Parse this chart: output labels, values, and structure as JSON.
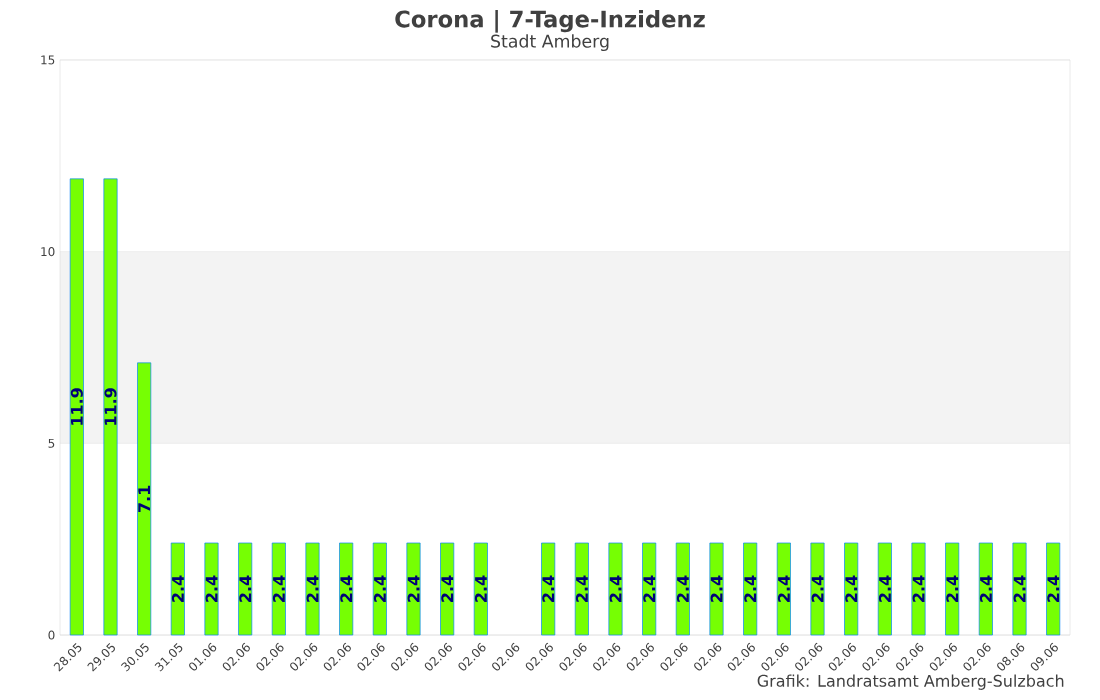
{
  "chart_data": {
    "type": "bar",
    "title": "Corona | 7-Tage-Inzidenz",
    "subtitle": "Stadt Amberg",
    "categories": [
      "28.05",
      "29.05",
      "30.05",
      "31.05",
      "01.06",
      "02.06",
      "02.06",
      "02.06",
      "02.06",
      "02.06",
      "02.06",
      "02.06",
      "02.06",
      "02.06",
      "02.06",
      "02.06",
      "02.06",
      "02.06",
      "02.06",
      "02.06",
      "02.06",
      "02.06",
      "02.06",
      "02.06",
      "02.06",
      "02.06",
      "02.06",
      "02.06",
      "08.06",
      "09.06"
    ],
    "values": [
      11.9,
      11.9,
      7.1,
      2.4,
      2.4,
      2.4,
      2.4,
      2.4,
      2.4,
      2.4,
      2.4,
      2.4,
      2.4,
      null,
      2.4,
      2.4,
      2.4,
      2.4,
      2.4,
      2.4,
      2.4,
      2.4,
      2.4,
      2.4,
      2.4,
      2.4,
      2.4,
      2.4,
      2.4,
      2.4
    ],
    "color": "#76ff03",
    "ylim": [
      0,
      15
    ],
    "yticks": [
      0,
      5,
      10,
      15
    ],
    "grid": "y",
    "bands": [
      {
        "axis": "y",
        "from": 5,
        "to": 10,
        "color": "#f3f3f3"
      }
    ],
    "data_labels": true,
    "annotations": [
      "Grafik: Landratsamt Amberg-Sulzbach"
    ]
  }
}
